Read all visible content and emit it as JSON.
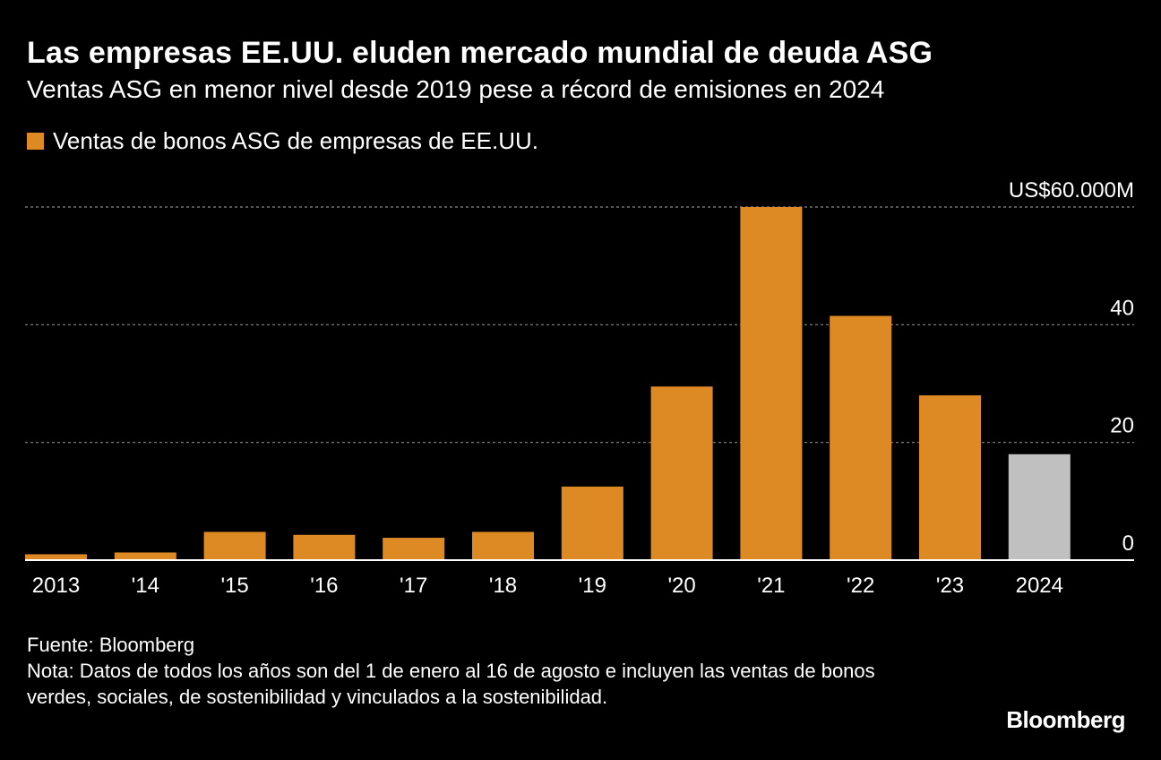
{
  "title": "Las empresas EE.UU. eluden mercado mundial de deuda ASG",
  "subtitle": "Ventas ASG en menor nivel desde 2019 pese a récord de emisiones en 2024",
  "source": "Fuente: Bloomberg",
  "note": "Nota: Datos de todos los años son del 1 de enero al 16 de agosto e incluyen las ventas de bonos verdes, sociales, de sostenibilidad y vinculados a la sostenibilidad.",
  "brand": "Bloomberg",
  "colors": {
    "bar": "#DE8A24",
    "highlight": "#C0C0C0",
    "grid": "#8a8a8a",
    "axis": "#ffffff",
    "text": "#ffffff"
  },
  "chart_data": {
    "type": "bar",
    "title": "Ventas de bonos ASG de empresas de EE.UU.",
    "legend": [
      {
        "label": "Ventas de bonos ASG de empresas de EE.UU.",
        "color": "#DE8A24"
      }
    ],
    "categories": [
      "2013",
      "'14",
      "'15",
      "'16",
      "'17",
      "'18",
      "'19",
      "'20",
      "'21",
      "'22",
      "'23",
      "2024"
    ],
    "values": [
      1.0,
      1.3,
      4.8,
      4.3,
      3.8,
      4.8,
      12.5,
      29.5,
      60.0,
      41.5,
      28.0,
      18.0
    ],
    "highlight_index": 11,
    "unit": "US$ miles de millones",
    "ylim": [
      0,
      60
    ],
    "yticks": [
      0,
      20,
      40,
      60
    ],
    "ytick_labels": [
      "0",
      "20",
      "40",
      "US$60.000M"
    ],
    "y_axis_side": "right",
    "grid": true
  }
}
